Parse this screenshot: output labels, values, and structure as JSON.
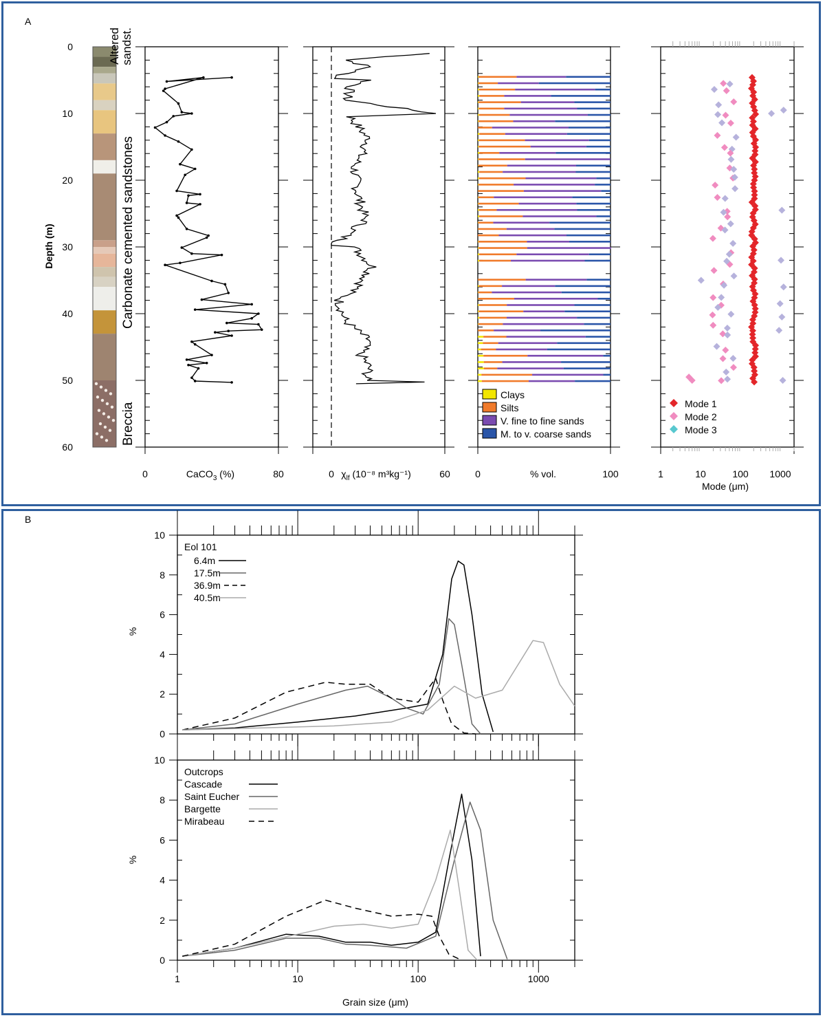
{
  "colors": {
    "border": "#2f5f9e",
    "clays": "#f2e600",
    "silts": "#f07a2a",
    "vfine": "#7a4bb0",
    "mcoarse": "#2a55a8",
    "mode1": "#e3262a",
    "mode2": "#f08cc0",
    "mode3": "#58c8cf",
    "mode2_alt": "#b6b2dc"
  },
  "panel_labels": {
    "a": "A",
    "b": "B"
  },
  "chart_data": [
    {
      "id": "caco3",
      "type": "line",
      "xlabel_main": "CaCO",
      "xlabel_sub": "3",
      "xlabel_tail": " (%)",
      "ylabel": "Depth (m)",
      "xlim": [
        0,
        80
      ],
      "ylim": [
        0,
        60
      ],
      "xticks": [
        "0",
        "80"
      ],
      "yticks": [
        "0",
        "10",
        "20",
        "30",
        "40",
        "50",
        "60"
      ],
      "depth": [
        4.6,
        5.2,
        4.6,
        6.3,
        6.6,
        8.5,
        9.8,
        10.0,
        10.4,
        11.3,
        12.1,
        13.3,
        14.2,
        15.4,
        17.6,
        18.3,
        19.2,
        21.6,
        22.1,
        22.3,
        23.4,
        23.6,
        25.3,
        25.6,
        27.3,
        28.3,
        28.6,
        30.1,
        31.0,
        31.2,
        32.4,
        32.7,
        35.1,
        35.6,
        36.9,
        37.9,
        38.6,
        39.4,
        40.0,
        40.7,
        41.4,
        41.6,
        42.4,
        42.6,
        42.8,
        43.3,
        44.2,
        44.6,
        46.2,
        46.9,
        47.4,
        47.7,
        48.2,
        49.6,
        50.1,
        50.3
      ],
      "caco3": [
        52,
        13,
        35,
        12,
        11,
        20,
        22,
        28,
        17,
        13,
        6,
        12,
        20,
        28,
        21,
        30,
        24,
        19,
        33,
        26,
        25,
        33,
        19,
        20,
        25,
        38,
        37,
        22,
        28,
        46,
        21,
        12,
        40,
        48,
        50,
        34,
        64,
        30,
        68,
        64,
        49,
        68,
        70,
        50,
        42,
        52,
        28,
        30,
        40,
        25,
        37,
        26,
        32,
        28,
        30,
        52
      ]
    },
    {
      "id": "chi",
      "type": "line",
      "xlabel_main": "χ",
      "xlabel_sub": "lf",
      "xlabel_tail": " (10⁻⁸ m³kg⁻¹)",
      "xlim": [
        0,
        60
      ],
      "xticks": [
        "0",
        "60"
      ],
      "baseline_label": "dashed zero line"
    },
    {
      "id": "psd",
      "type": "bar",
      "orientation": "horizontal-stacked",
      "xlabel": "% vol.",
      "xlim": [
        0,
        100
      ],
      "xticks": [
        "0",
        "100"
      ],
      "legend": [
        "Clays",
        "Silts",
        "V. fine to fine sands",
        "M. to v. coarse sands"
      ]
    },
    {
      "id": "modes",
      "type": "scatter",
      "xscale": "log",
      "xlabel": "Mode (μm)",
      "xlim": [
        1,
        2000
      ],
      "xticks": [
        "1",
        "10",
        "100",
        "1000"
      ],
      "legend": [
        "Mode 1",
        "Mode 2",
        "Mode 3"
      ]
    },
    {
      "id": "eol101",
      "type": "line",
      "xscale": "log",
      "ylabel": "%",
      "xlim": [
        1,
        2000
      ],
      "ylim": [
        0,
        10
      ],
      "yticks": [
        "0",
        "2",
        "4",
        "6",
        "8",
        "10"
      ],
      "legend_title": "Eol 101",
      "series": [
        {
          "name": "6.4m",
          "style": "solid-black",
          "x": [
            1.1,
            3,
            10,
            30,
            80,
            120,
            160,
            190,
            215,
            240,
            280,
            340,
            420
          ],
          "values": [
            0.2,
            0.3,
            0.6,
            0.9,
            1.3,
            1.5,
            4,
            7.8,
            8.7,
            8.5,
            6,
            2,
            0.1
          ]
        },
        {
          "name": "17.5m",
          "style": "solid-darkgrey",
          "x": [
            1.1,
            3,
            10,
            25,
            38,
            60,
            80,
            110,
            150,
            180,
            200,
            230,
            280,
            330
          ],
          "values": [
            0.2,
            0.5,
            1.5,
            2.2,
            2.4,
            1.8,
            1.3,
            1.0,
            2.5,
            5.8,
            5.5,
            3.5,
            0.5,
            0
          ]
        },
        {
          "name": "36.9m",
          "style": "dashed-black",
          "x": [
            1.1,
            3,
            8,
            17,
            25,
            40,
            60,
            100,
            140,
            160,
            190,
            240,
            300
          ],
          "values": [
            0.2,
            0.8,
            2.1,
            2.6,
            2.5,
            2.5,
            1.8,
            1.6,
            2.8,
            1.7,
            0.5,
            0.05,
            0
          ]
        },
        {
          "name": "40.5m",
          "style": "solid-lightgrey",
          "x": [
            1.1,
            5,
            20,
            60,
            120,
            200,
            300,
            500,
            900,
            1100,
            1500,
            2000
          ],
          "values": [
            0.2,
            0.3,
            0.4,
            0.6,
            1.2,
            2.4,
            1.8,
            2.2,
            4.7,
            4.6,
            2.5,
            1.4
          ]
        }
      ]
    },
    {
      "id": "outcrops",
      "type": "line",
      "xscale": "log",
      "xlabel": "Grain size (μm)",
      "ylabel": "%",
      "xlim": [
        1,
        2000
      ],
      "ylim": [
        0,
        10
      ],
      "xticks": [
        "1",
        "10",
        "100",
        "1000"
      ],
      "yticks": [
        "0",
        "2",
        "4",
        "6",
        "8",
        "10"
      ],
      "legend_title": "Outcrops",
      "series": [
        {
          "name": "Cascade",
          "style": "solid-black",
          "x": [
            1.1,
            3,
            8,
            15,
            25,
            40,
            60,
            100,
            140,
            180,
            230,
            280,
            330
          ],
          "values": [
            0.2,
            0.6,
            1.3,
            1.2,
            0.9,
            0.9,
            0.75,
            0.9,
            1.4,
            5,
            8.3,
            5,
            0.2
          ]
        },
        {
          "name": "Saint Eucher",
          "style": "solid-darkgrey",
          "x": [
            1.1,
            3,
            8,
            15,
            25,
            40,
            80,
            140,
            200,
            270,
            330,
            420,
            550
          ],
          "values": [
            0.2,
            0.5,
            1.1,
            1.1,
            0.8,
            0.75,
            0.6,
            1.2,
            5,
            7.9,
            6.5,
            2,
            0.05
          ]
        },
        {
          "name": "Bargette",
          "style": "solid-lightgrey",
          "x": [
            1.1,
            3,
            10,
            20,
            35,
            60,
            100,
            140,
            185,
            220,
            260,
            310
          ],
          "values": [
            0.2,
            0.6,
            1.3,
            1.7,
            1.8,
            1.6,
            1.8,
            4,
            6.5,
            3.5,
            0.5,
            0
          ]
        },
        {
          "name": "Mirabeau",
          "style": "dashed-black",
          "x": [
            1.1,
            3,
            8,
            17,
            30,
            60,
            100,
            130,
            150,
            180,
            230
          ],
          "values": [
            0.2,
            0.8,
            2.2,
            3.0,
            2.6,
            2.2,
            2.3,
            2.2,
            1.2,
            0.3,
            0
          ]
        }
      ]
    }
  ],
  "annotations": {
    "altered": "Altered",
    "sandst": "sandst.",
    "carbonate": "Carbonate cemented sandstones",
    "breccia": "Breccia"
  }
}
